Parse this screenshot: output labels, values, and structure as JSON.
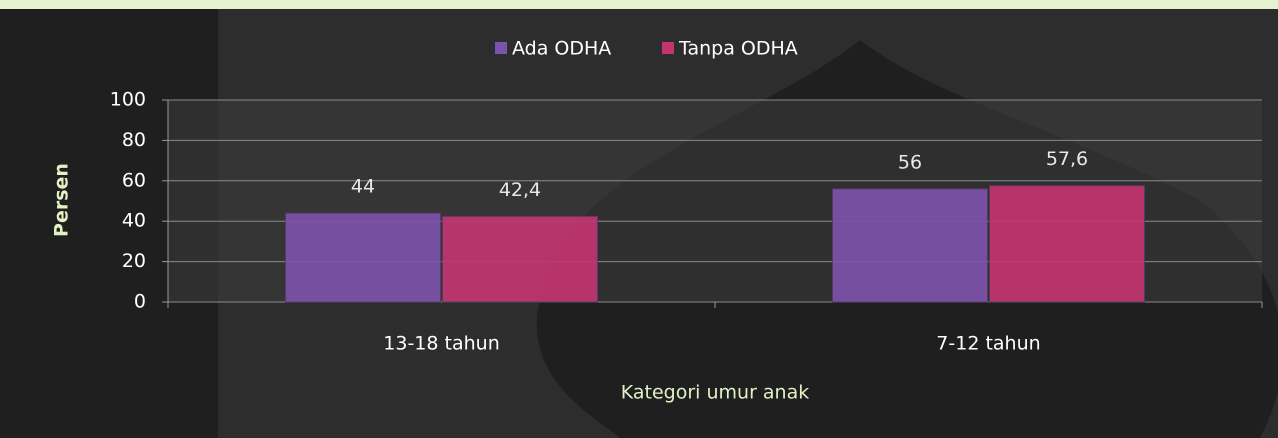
{
  "chart_data": {
    "type": "bar",
    "x_label": "Kategori umur anak",
    "y_label": "Persen",
    "categories": [
      "13-18 tahun",
      "7-12 tahun"
    ],
    "series": [
      {
        "name": "Ada ODHA",
        "color": "#7d52ab",
        "values": [
          44,
          56
        ],
        "value_labels": [
          "44",
          "56"
        ]
      },
      {
        "name": "Tanpa ODHA",
        "color": "#c2356f",
        "values": [
          42.4,
          57.6
        ],
        "value_labels": [
          "42,4",
          "57,6"
        ]
      }
    ],
    "ylim": [
      0,
      100
    ],
    "yticks": [
      0,
      20,
      40,
      60,
      80,
      100
    ],
    "grid": true,
    "legend": "top"
  }
}
